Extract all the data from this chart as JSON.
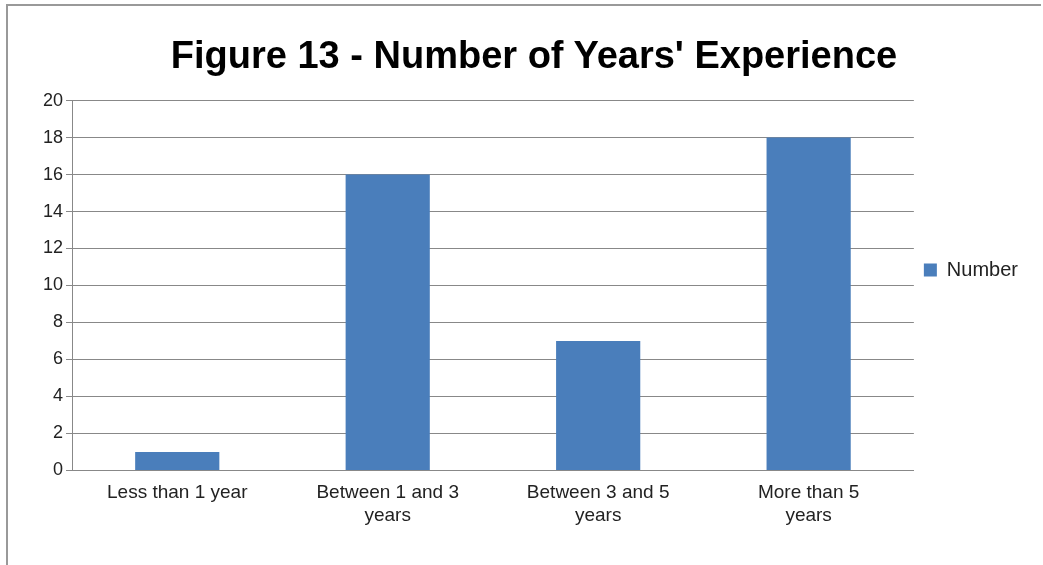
{
  "chart_data": {
    "type": "bar",
    "title": "Figure 13 - Number of Years' Experience",
    "categories": [
      "Less than 1 year",
      "Between 1 and 3 years",
      "Between 3 and 5 years",
      "More than 5 years"
    ],
    "series": [
      {
        "name": "Number",
        "color": "#4a7ebb",
        "values": [
          1,
          16,
          7,
          18
        ]
      }
    ],
    "ylim": [
      0,
      20
    ],
    "yticks": [
      0,
      2,
      4,
      6,
      8,
      10,
      12,
      14,
      16,
      18,
      20
    ],
    "grid": "y",
    "legend": "right"
  }
}
